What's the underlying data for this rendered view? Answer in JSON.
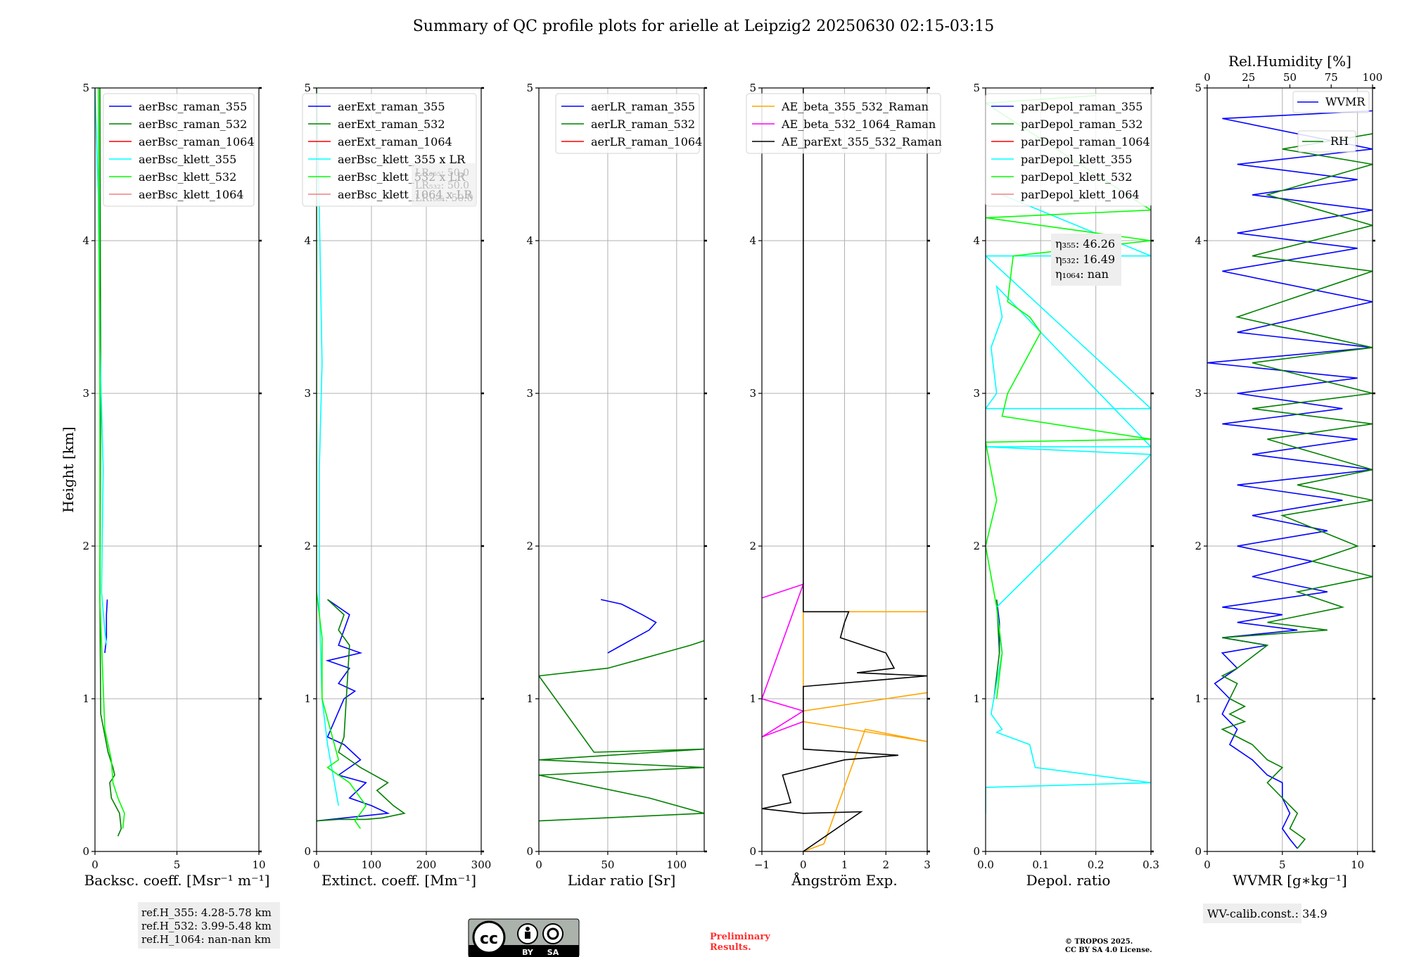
{
  "title": "Summary of QC profile plots for arielle at Leipzig2 20250630 02:15-03:15",
  "colors": {
    "blue": "#0000ff",
    "green": "#008000",
    "red": "#ff0000",
    "cyan": "#00ffff",
    "lime": "#00ff00",
    "pink": "#f08080",
    "orange": "#ffa500",
    "magenta": "#ff00ff",
    "black": "#000000"
  },
  "chart_data": [
    {
      "type": "line",
      "panel": "backscatter",
      "xlabel": "Backsc. coeff. [Msr⁻¹ m⁻¹]",
      "ylabel": "Height [km]",
      "xlim": [
        0,
        10
      ],
      "ylim": [
        0,
        5
      ],
      "xticks": [
        "0",
        "5",
        "10"
      ],
      "yticks": [
        "0",
        "1",
        "2",
        "3",
        "4",
        "5"
      ],
      "grid": true,
      "legend_position": "top-right",
      "series": [
        {
          "name": "aerBsc_raman_355",
          "color": "blue",
          "x": [
            0.6,
            0.7,
            0.7,
            0.75
          ],
          "y": [
            1.3,
            1.4,
            1.55,
            1.65
          ]
        },
        {
          "name": "aerBsc_raman_532",
          "color": "green",
          "x": [
            0.3,
            0.35,
            0.3,
            0.35,
            0.8,
            1.1,
            1.2,
            0.9,
            1.0,
            1.5,
            1.6,
            1.4
          ],
          "y": [
            5.0,
            3.0,
            1.65,
            0.9,
            0.65,
            0.55,
            0.5,
            0.45,
            0.35,
            0.25,
            0.15,
            0.1
          ]
        },
        {
          "name": "aerBsc_raman_1064",
          "color": "red",
          "x": [],
          "y": []
        },
        {
          "name": "aerBsc_klett_355",
          "color": "cyan",
          "x": [
            0.0,
            0.2,
            0.3,
            0.5,
            0.4,
            0.6,
            0.7
          ],
          "y": [
            5.0,
            4.3,
            3.3,
            2.5,
            1.7,
            1.45,
            1.35
          ]
        },
        {
          "name": "aerBsc_klett_532",
          "color": "lime",
          "x": [
            0.2,
            0.25,
            0.3,
            0.3,
            0.6,
            1.0,
            1.1,
            1.4,
            1.8,
            1.7
          ],
          "y": [
            5.0,
            4.0,
            3.0,
            1.65,
            0.8,
            0.6,
            0.45,
            0.35,
            0.25,
            0.15
          ]
        },
        {
          "name": "aerBsc_klett_1064",
          "color": "pink",
          "x": [],
          "y": []
        }
      ]
    },
    {
      "type": "line",
      "panel": "extinction",
      "xlabel": "Extinct. coeff. [Mm⁻¹]",
      "xlim": [
        0,
        300
      ],
      "ylim": [
        0,
        5
      ],
      "xticks": [
        "0",
        "100",
        "200",
        "300"
      ],
      "yticks": [
        "0",
        "1",
        "2",
        "3",
        "4",
        "5"
      ],
      "grid": true,
      "legend_position": "top-right",
      "series": [
        {
          "name": "aerExt_raman_355",
          "color": "blue",
          "x": [
            20,
            60,
            50,
            40,
            80,
            20,
            60,
            40,
            70,
            50,
            20,
            50,
            80,
            40,
            90,
            60,
            100,
            130,
            0
          ],
          "y": [
            1.65,
            1.55,
            1.45,
            1.35,
            1.3,
            1.25,
            1.2,
            1.1,
            1.05,
            1.0,
            0.75,
            0.7,
            0.6,
            0.5,
            0.45,
            0.35,
            0.3,
            0.25,
            0.2
          ]
        },
        {
          "name": "aerExt_raman_532",
          "color": "green",
          "x": [
            20,
            50,
            40,
            60,
            50,
            40,
            80,
            130,
            110,
            140,
            160,
            120,
            90,
            40,
            0
          ],
          "y": [
            1.65,
            1.55,
            1.45,
            1.35,
            0.75,
            0.65,
            0.55,
            0.45,
            0.4,
            0.3,
            0.25,
            0.22,
            0.21,
            0.21,
            0.2
          ]
        },
        {
          "name": "aerExt_raman_1064",
          "color": "red",
          "x": [],
          "y": []
        },
        {
          "name": "aerBsc_klett_355 x LR",
          "color": "cyan",
          "x": [
            0,
            5,
            10,
            5,
            5,
            10,
            20,
            30,
            40
          ],
          "y": [
            5.0,
            4.2,
            3.2,
            2.5,
            1.6,
            1.0,
            0.7,
            0.5,
            0.3
          ]
        },
        {
          "name": "aerBsc_klett_532 x LR",
          "color": "lime",
          "x": [
            0,
            0,
            0,
            0,
            10,
            10,
            40,
            20,
            60,
            80,
            90,
            70,
            80
          ],
          "y": [
            5.0,
            4.0,
            3.0,
            1.7,
            1.4,
            1.0,
            0.6,
            0.55,
            0.45,
            0.35,
            0.3,
            0.2,
            0.15
          ]
        },
        {
          "name": "aerBsc_klett_1064 x LR",
          "color": "pink",
          "x": [],
          "y": []
        }
      ]
    },
    {
      "type": "line",
      "panel": "lidar-ratio",
      "xlabel": "Lidar ratio [Sr]",
      "xlim": [
        0,
        120
      ],
      "ylim": [
        0,
        5
      ],
      "xticks": [
        "0",
        "50",
        "100"
      ],
      "yticks": [
        "0",
        "1",
        "2",
        "3",
        "4",
        "5"
      ],
      "grid": true,
      "legend_position": "top-right",
      "series": [
        {
          "name": "aerLR_raman_355",
          "color": "blue",
          "x": [
            45,
            60,
            75,
            85,
            80,
            70,
            60,
            50
          ],
          "y": [
            1.65,
            1.62,
            1.55,
            1.5,
            1.45,
            1.4,
            1.35,
            1.3
          ]
        },
        {
          "name": "aerLR_raman_532",
          "color": "green",
          "x": [
            120,
            110,
            90,
            70,
            50,
            30,
            0,
            40,
            120,
            0,
            120,
            0,
            80,
            100,
            120,
            0
          ],
          "y": [
            1.38,
            1.35,
            1.3,
            1.25,
            1.2,
            1.18,
            1.15,
            0.65,
            0.67,
            0.6,
            0.55,
            0.5,
            0.35,
            0.3,
            0.25,
            0.2
          ]
        },
        {
          "name": "aerLR_raman_1064",
          "color": "red",
          "x": [],
          "y": []
        }
      ]
    },
    {
      "type": "line",
      "panel": "angstrom",
      "xlabel": "Ångström Exp.",
      "xlim": [
        -1,
        3
      ],
      "ylim": [
        0,
        5
      ],
      "xticks": [
        "−1",
        "0",
        "1",
        "2",
        "3"
      ],
      "yticks": [
        "0",
        "1",
        "2",
        "3",
        "4",
        "5"
      ],
      "grid": true,
      "legend_position": "top-left",
      "series": [
        {
          "name": "AE_beta_355_532_Raman",
          "color": "orange",
          "x": [
            3.0,
            0.0,
            0.0,
            3.0,
            0.0,
            0.0,
            3.0,
            1.5,
            0.5,
            0.0
          ],
          "y": [
            1.57,
            1.57,
            0.92,
            1.04,
            0.92,
            0.85,
            0.72,
            0.8,
            0.05,
            0.0
          ]
        },
        {
          "name": "AE_beta_532_1064_Raman",
          "color": "magenta",
          "x": [
            -1.0,
            0.0,
            -1.0,
            0.0,
            -1.0,
            0.0
          ],
          "y": [
            1.66,
            1.75,
            1.0,
            0.92,
            0.75,
            0.85
          ]
        },
        {
          "name": "AE_parExt_355_532_Raman",
          "color": "black",
          "x": [
            0.0,
            0.0,
            1.1,
            1.0,
            0.9,
            2.0,
            2.2,
            1.3,
            3.0,
            0.0,
            0.0,
            2.3,
            1.0,
            -0.5,
            -0.3,
            -1.0,
            0.0,
            1.4,
            0.0
          ],
          "y": [
            5.0,
            1.57,
            1.57,
            1.5,
            1.4,
            1.3,
            1.2,
            1.17,
            1.15,
            1.08,
            0.67,
            0.63,
            0.6,
            0.5,
            0.32,
            0.28,
            0.25,
            0.26,
            0.0
          ]
        }
      ]
    },
    {
      "type": "line",
      "panel": "depolarization",
      "xlabel": "Depol. ratio",
      "xlim": [
        0.0,
        0.3
      ],
      "ylim": [
        0,
        5
      ],
      "xticks": [
        "0.0",
        "0.1",
        "0.2",
        "0.3"
      ],
      "yticks": [
        "0",
        "1",
        "2",
        "3",
        "4",
        "5"
      ],
      "grid": true,
      "legend_position": "top-left",
      "series": [
        {
          "name": "parDepol_raman_355",
          "color": "blue",
          "x": [
            0.02,
            0.025,
            0.025
          ],
          "y": [
            1.65,
            1.5,
            1.3
          ]
        },
        {
          "name": "parDepol_raman_532",
          "color": "green",
          "x": [
            0.02,
            0.025,
            0.015
          ],
          "y": [
            1.65,
            1.3,
            1.0
          ]
        },
        {
          "name": "parDepol_raman_1064",
          "color": "red",
          "x": [],
          "y": []
        },
        {
          "name": "parDepol_klett_355",
          "color": "cyan",
          "x": [
            0.03,
            0.3,
            0.0,
            0.3,
            0.0,
            0.02,
            0.01,
            0.03,
            0.02,
            0.3,
            0.0,
            0.3,
            0.02,
            0.03,
            0.01,
            0.03,
            0.02,
            0.08,
            0.09,
            0.3,
            0.0,
            0.0
          ],
          "y": [
            4.3,
            3.9,
            3.9,
            2.9,
            2.9,
            3.0,
            3.3,
            3.5,
            3.7,
            2.65,
            2.65,
            2.6,
            1.6,
            1.3,
            0.9,
            0.8,
            0.78,
            0.7,
            0.55,
            0.45,
            0.42,
            0.25
          ]
        },
        {
          "name": "parDepol_klett_532",
          "color": "lime",
          "x": [
            0.2,
            0.0,
            0.3,
            0.0,
            0.3,
            0.05,
            0.04,
            0.08,
            0.1,
            0.07,
            0.04,
            0.03,
            0.3,
            0.0,
            0.02,
            0.0,
            0.02,
            0.03,
            0.02
          ],
          "y": [
            4.95,
            4.9,
            4.2,
            4.15,
            4.0,
            3.9,
            3.6,
            3.5,
            3.4,
            3.2,
            3.0,
            2.85,
            2.7,
            2.68,
            2.3,
            2.0,
            1.6,
            1.3,
            1.0
          ]
        },
        {
          "name": "parDepol_klett_1064",
          "color": "pink",
          "x": [],
          "y": []
        }
      ]
    },
    {
      "type": "line",
      "panel": "water-vapor",
      "xlabel": "WVMR [g∗kg⁻¹]",
      "top_xlabel": "Rel.Humidity [%]",
      "xlim": [
        0,
        11
      ],
      "top_xlim": [
        0,
        100
      ],
      "ylim": [
        0,
        5
      ],
      "xticks": [
        "0",
        "5",
        "10"
      ],
      "top_xticks": [
        "0",
        "25",
        "50",
        "75",
        "100"
      ],
      "yticks": [
        "0",
        "1",
        "2",
        "3",
        "4",
        "5"
      ],
      "grid": true,
      "legend_position": "top-right",
      "series": [
        {
          "name": "WVMR",
          "color": "blue",
          "x": [
            11,
            1,
            11,
            2,
            10,
            3,
            11,
            2,
            10,
            1,
            11,
            2,
            11,
            0,
            10,
            2,
            9,
            1,
            10,
            3,
            11,
            2,
            9,
            3,
            8,
            2,
            7,
            3,
            8,
            1,
            5,
            2,
            6,
            1,
            4,
            1,
            2,
            0.5,
            1.5,
            1,
            2,
            1.5,
            3,
            4,
            5,
            5,
            5.5,
            5,
            5.5,
            6
          ],
          "y": [
            4.85,
            4.8,
            4.6,
            4.5,
            4.4,
            4.3,
            4.2,
            4.05,
            3.95,
            3.8,
            3.6,
            3.4,
            3.3,
            3.2,
            3.1,
            3.0,
            2.9,
            2.8,
            2.7,
            2.6,
            2.5,
            2.4,
            2.3,
            2.2,
            2.1,
            2.0,
            1.9,
            1.8,
            1.7,
            1.6,
            1.55,
            1.5,
            1.45,
            1.4,
            1.35,
            1.3,
            1.2,
            1.1,
            1.0,
            0.9,
            0.8,
            0.7,
            0.6,
            0.5,
            0.45,
            0.35,
            0.25,
            0.15,
            0.08,
            0.02
          ]
        },
        {
          "name": "RH",
          "color": "green",
          "x": [
            11,
            5,
            11,
            4,
            11,
            3,
            11,
            2,
            11,
            3,
            11,
            3,
            11,
            4,
            11,
            6,
            11,
            5,
            10,
            7,
            11,
            6,
            9,
            4,
            8,
            1,
            4,
            2,
            1,
            2,
            1.5,
            2.5,
            1.5,
            2.5,
            1,
            3,
            4,
            5,
            4,
            5,
            6,
            5.5,
            6.5,
            6
          ],
          "y": [
            4.7,
            4.6,
            4.5,
            4.3,
            4.1,
            3.9,
            3.8,
            3.5,
            3.3,
            3.2,
            3.0,
            2.9,
            2.8,
            2.7,
            2.5,
            2.4,
            2.3,
            2.2,
            2.0,
            1.9,
            1.8,
            1.7,
            1.6,
            1.5,
            1.45,
            1.4,
            1.35,
            1.2,
            1.15,
            1.1,
            1.0,
            0.95,
            0.9,
            0.85,
            0.8,
            0.7,
            0.6,
            0.55,
            0.45,
            0.35,
            0.25,
            0.15,
            0.08,
            0.02
          ]
        }
      ]
    }
  ],
  "annotations": {
    "ext_overlay_lines": [
      "LR₃₅₅: 50.0",
      "LR₅₃₂: 50.0",
      "LR₁₀₆₄: 50.0"
    ],
    "eta_lines": [
      "η₃₅₅: 46.26",
      "η₅₃₂: 16.49",
      "η₁₀₆₄: nan"
    ],
    "refh_lines": [
      "ref.H_355: 4.28-5.78 km",
      "ref.H_532: 3.99-5.48 km",
      "ref.H_1064: nan-nan km"
    ],
    "wv_calib": "WV-calib.const.: 34.9",
    "preliminary": [
      "Preliminary",
      "Results."
    ],
    "copyright": [
      "© TROPOS 2025.",
      "CC BY SA 4.0 License."
    ],
    "cc_badge": {
      "cc": "cc",
      "by": "BY",
      "sa": "SA"
    }
  }
}
